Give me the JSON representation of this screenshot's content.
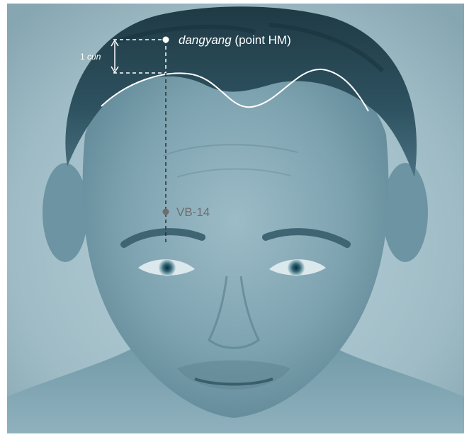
{
  "figure": {
    "point_primary": {
      "name_italic": "dangyang",
      "name_rest": " (point HM)"
    },
    "point_secondary": {
      "label": "VB-14"
    },
    "measure": {
      "number": "1 ",
      "unit_italic": "cun"
    }
  },
  "colors": {
    "background": "#ffffff",
    "photo_tone": "#7fa7b3",
    "hair": "#23404b",
    "annotation_white": "#ffffff",
    "annotation_dark": "#2a2f33",
    "vb14_point": "#6e6e6e"
  }
}
